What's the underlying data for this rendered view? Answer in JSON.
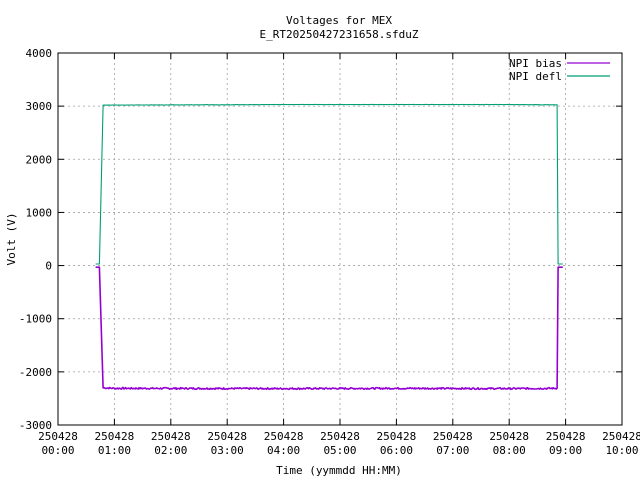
{
  "chart_data": {
    "type": "line",
    "title": "Voltages for MEX",
    "subtitle": "E_RT20250427231658.sfduZ",
    "xlabel": "Time (yymmdd HH:MM)",
    "ylabel": "Volt (V)",
    "xlim": [
      "250428 00:00",
      "250428 10:00"
    ],
    "ylim": [
      -3000,
      4000
    ],
    "grid": true,
    "legend_position": "top-right",
    "x_ticks": [
      {
        "date": "250428",
        "time": "00:00"
      },
      {
        "date": "250428",
        "time": "01:00"
      },
      {
        "date": "250428",
        "time": "02:00"
      },
      {
        "date": "250428",
        "time": "03:00"
      },
      {
        "date": "250428",
        "time": "04:00"
      },
      {
        "date": "250428",
        "time": "05:00"
      },
      {
        "date": "250428",
        "time": "06:00"
      },
      {
        "date": "250428",
        "time": "07:00"
      },
      {
        "date": "250428",
        "time": "08:00"
      },
      {
        "date": "250428",
        "time": "09:00"
      },
      {
        "date": "250428",
        "time": "10:00"
      }
    ],
    "y_ticks": [
      "4000",
      "3000",
      "2000",
      "1000",
      "0",
      "-1000",
      "-2000",
      "-3000"
    ],
    "series": [
      {
        "name": "NPI bias",
        "color": "#9400d3",
        "x": [
          "250428 00:40",
          "250428 00:44",
          "250428 00:48",
          "250428 01:00",
          "250428 04:00",
          "250428 06:00",
          "250428 08:00",
          "250428 08:51",
          "250428 08:52",
          "250428 08:57"
        ],
        "y": [
          -30,
          -30,
          -2300,
          -2310,
          -2315,
          -2310,
          -2315,
          -2310,
          -30,
          -30
        ]
      },
      {
        "name": "NPI defl",
        "color": "#009e73",
        "x": [
          "250428 00:40",
          "250428 00:44",
          "250428 00:48",
          "250428 01:00",
          "250428 04:00",
          "250428 06:00",
          "250428 08:00",
          "250428 08:51",
          "250428 08:52",
          "250428 08:57"
        ],
        "y": [
          30,
          30,
          3020,
          3020,
          3030,
          3030,
          3030,
          3025,
          30,
          30
        ]
      }
    ]
  }
}
